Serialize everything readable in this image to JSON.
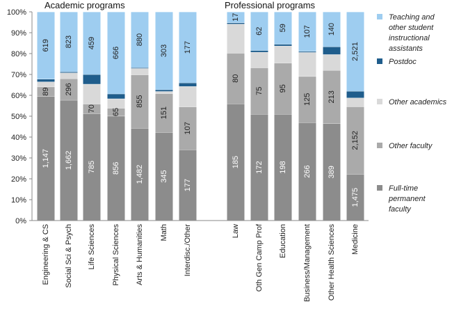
{
  "chart_data": {
    "type": "bar",
    "stacked": "percent",
    "group_titles": [
      "Academic programs",
      "Professional programs"
    ],
    "groups": [
      0,
      0,
      0,
      0,
      0,
      0,
      0,
      1,
      1,
      1,
      1,
      1,
      1
    ],
    "categories": [
      "Engineering & CS",
      "Social Sci & Psych",
      "Life Sciences",
      "Physical Sciences",
      "Arts & Humanities",
      "Math",
      "Interdisc./Other",
      "Law",
      "Oth Gen Camp Prof",
      "Education",
      "Business/Management",
      "Other Health Sciences",
      "Medicine"
    ],
    "y_ticks": [
      "0%",
      "10%",
      "20%",
      "30%",
      "40%",
      "50%",
      "60%",
      "70%",
      "80%",
      "90%",
      "100%"
    ],
    "ylim": [
      0,
      100
    ],
    "grid": false,
    "legend_position": "right",
    "series": [
      {
        "name": "Full-time permanent faculty",
        "color": "#8c8c8c",
        "label_color": "#ffffff",
        "percent": [
          59.5,
          57.7,
          51.3,
          50.1,
          44.3,
          42.3,
          34.0,
          56.0,
          51.0,
          51.0,
          47.0,
          46.5,
          22.2
        ],
        "labels": [
          "1,147",
          "1,662",
          "785",
          "856",
          "1,482",
          "345",
          "177",
          "185",
          "172",
          "198",
          "266",
          "389",
          "1,475"
        ]
      },
      {
        "name": "Other faculty",
        "color": "#aaaaaa",
        "label_color": "#222222",
        "percent": [
          4.6,
          10.3,
          4.6,
          3.8,
          25.6,
          18.6,
          20.5,
          24.2,
          22.2,
          24.5,
          22.1,
          25.5,
          32.4
        ],
        "labels": [
          "89",
          "296",
          "70",
          "65",
          "855",
          "151",
          "107",
          "80",
          "75",
          "95",
          "125",
          "213",
          "2,152"
        ]
      },
      {
        "name": "Other academics",
        "color": "#d9d9d9",
        "label_color": "#222222",
        "percent": [
          2.4,
          2.8,
          9.5,
          4.5,
          3.0,
          1.0,
          9.8,
          14.0,
          7.5,
          8.2,
          11.5,
          7.6,
          4.2
        ],
        "labels": [
          "",
          "",
          "",
          "",
          "",
          "",
          "",
          "",
          "",
          "",
          "",
          "",
          ""
        ]
      },
      {
        "name": "Postdoc",
        "color": "#1f5d8c",
        "label_color": "#ffffff",
        "percent": [
          1.3,
          0.5,
          4.6,
          2.3,
          0.4,
          0.8,
          1.7,
          0.6,
          0.8,
          0.8,
          0.5,
          3.7,
          3.2
        ],
        "labels": [
          "",
          "",
          "",
          "",
          "",
          "",
          "",
          "",
          "",
          "",
          "",
          "",
          ""
        ]
      },
      {
        "name": "Teaching and other student instructional assistants",
        "color": "#9ecdf0",
        "label_color": "#222222",
        "percent": [
          32.2,
          28.7,
          30.0,
          39.3,
          26.7,
          37.3,
          34.0,
          5.2,
          18.5,
          15.5,
          18.9,
          16.7,
          38.0
        ],
        "labels": [
          "619",
          "823",
          "459",
          "666",
          "880",
          "303",
          "177",
          "17",
          "62",
          "59",
          "107",
          "140",
          "2,521"
        ]
      }
    ],
    "legend_order": [
      4,
      3,
      2,
      1,
      0
    ],
    "legend_labels": [
      [
        "Teaching and",
        "other student",
        "instructional",
        "assistants"
      ],
      [
        "Postdoc"
      ],
      [
        "Other academics"
      ],
      [
        "Other faculty"
      ],
      [
        "Full-time",
        "permanent",
        "faculty"
      ]
    ]
  }
}
